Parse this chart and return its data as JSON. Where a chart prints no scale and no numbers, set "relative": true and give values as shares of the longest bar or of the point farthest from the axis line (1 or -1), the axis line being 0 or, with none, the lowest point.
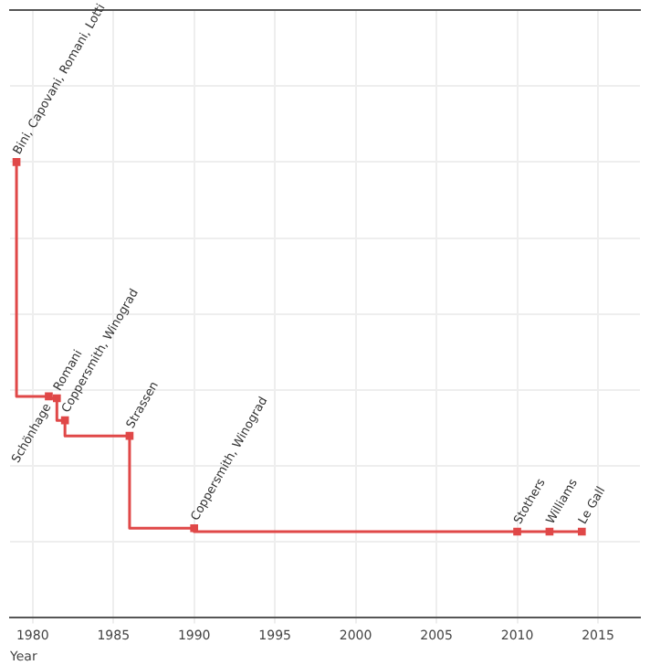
{
  "chart_data": {
    "type": "step",
    "relative": true,
    "xlabel": "Year",
    "x": [
      1979,
      1981,
      1981.5,
      1982,
      1986,
      1990,
      2010,
      2012,
      2014
    ],
    "series": [
      {
        "color": "#e04848",
        "values": [
          1,
          0.383,
          0.378,
          0.32,
          0.279,
          0.036,
          0.027,
          0.027,
          0.027
        ]
      }
    ],
    "xlim": [
      1978.6,
      2017.6
    ],
    "xticks": [
      1980,
      1985,
      1990,
      1995,
      2000,
      2005,
      2010,
      2015
    ],
    "grid": true,
    "marker": "square",
    "line_style": "solid",
    "tick_labels": "x",
    "annotations": [
      {
        "text": "Bini, Capovani, Romani, Lotti",
        "x": 1979,
        "y": 1
      },
      {
        "text": "Schönhage",
        "x": 1981,
        "y": 0.383
      },
      {
        "text": "Romani",
        "x": 1981.5,
        "y": 0.378
      },
      {
        "text": "Coppersmith, Winograd",
        "x": 1982,
        "y": 0.32
      },
      {
        "text": "Strassen",
        "x": 1986,
        "y": 0.279
      },
      {
        "text": "Coppersmith, Winograd",
        "x": 1990,
        "y": 0.036
      },
      {
        "text": "Stothers",
        "x": 2010,
        "y": 0.027
      },
      {
        "text": "Williams",
        "x": 2012,
        "y": 0.027
      },
      {
        "text": "Le Gall",
        "x": 2014,
        "y": 0.027
      }
    ]
  }
}
